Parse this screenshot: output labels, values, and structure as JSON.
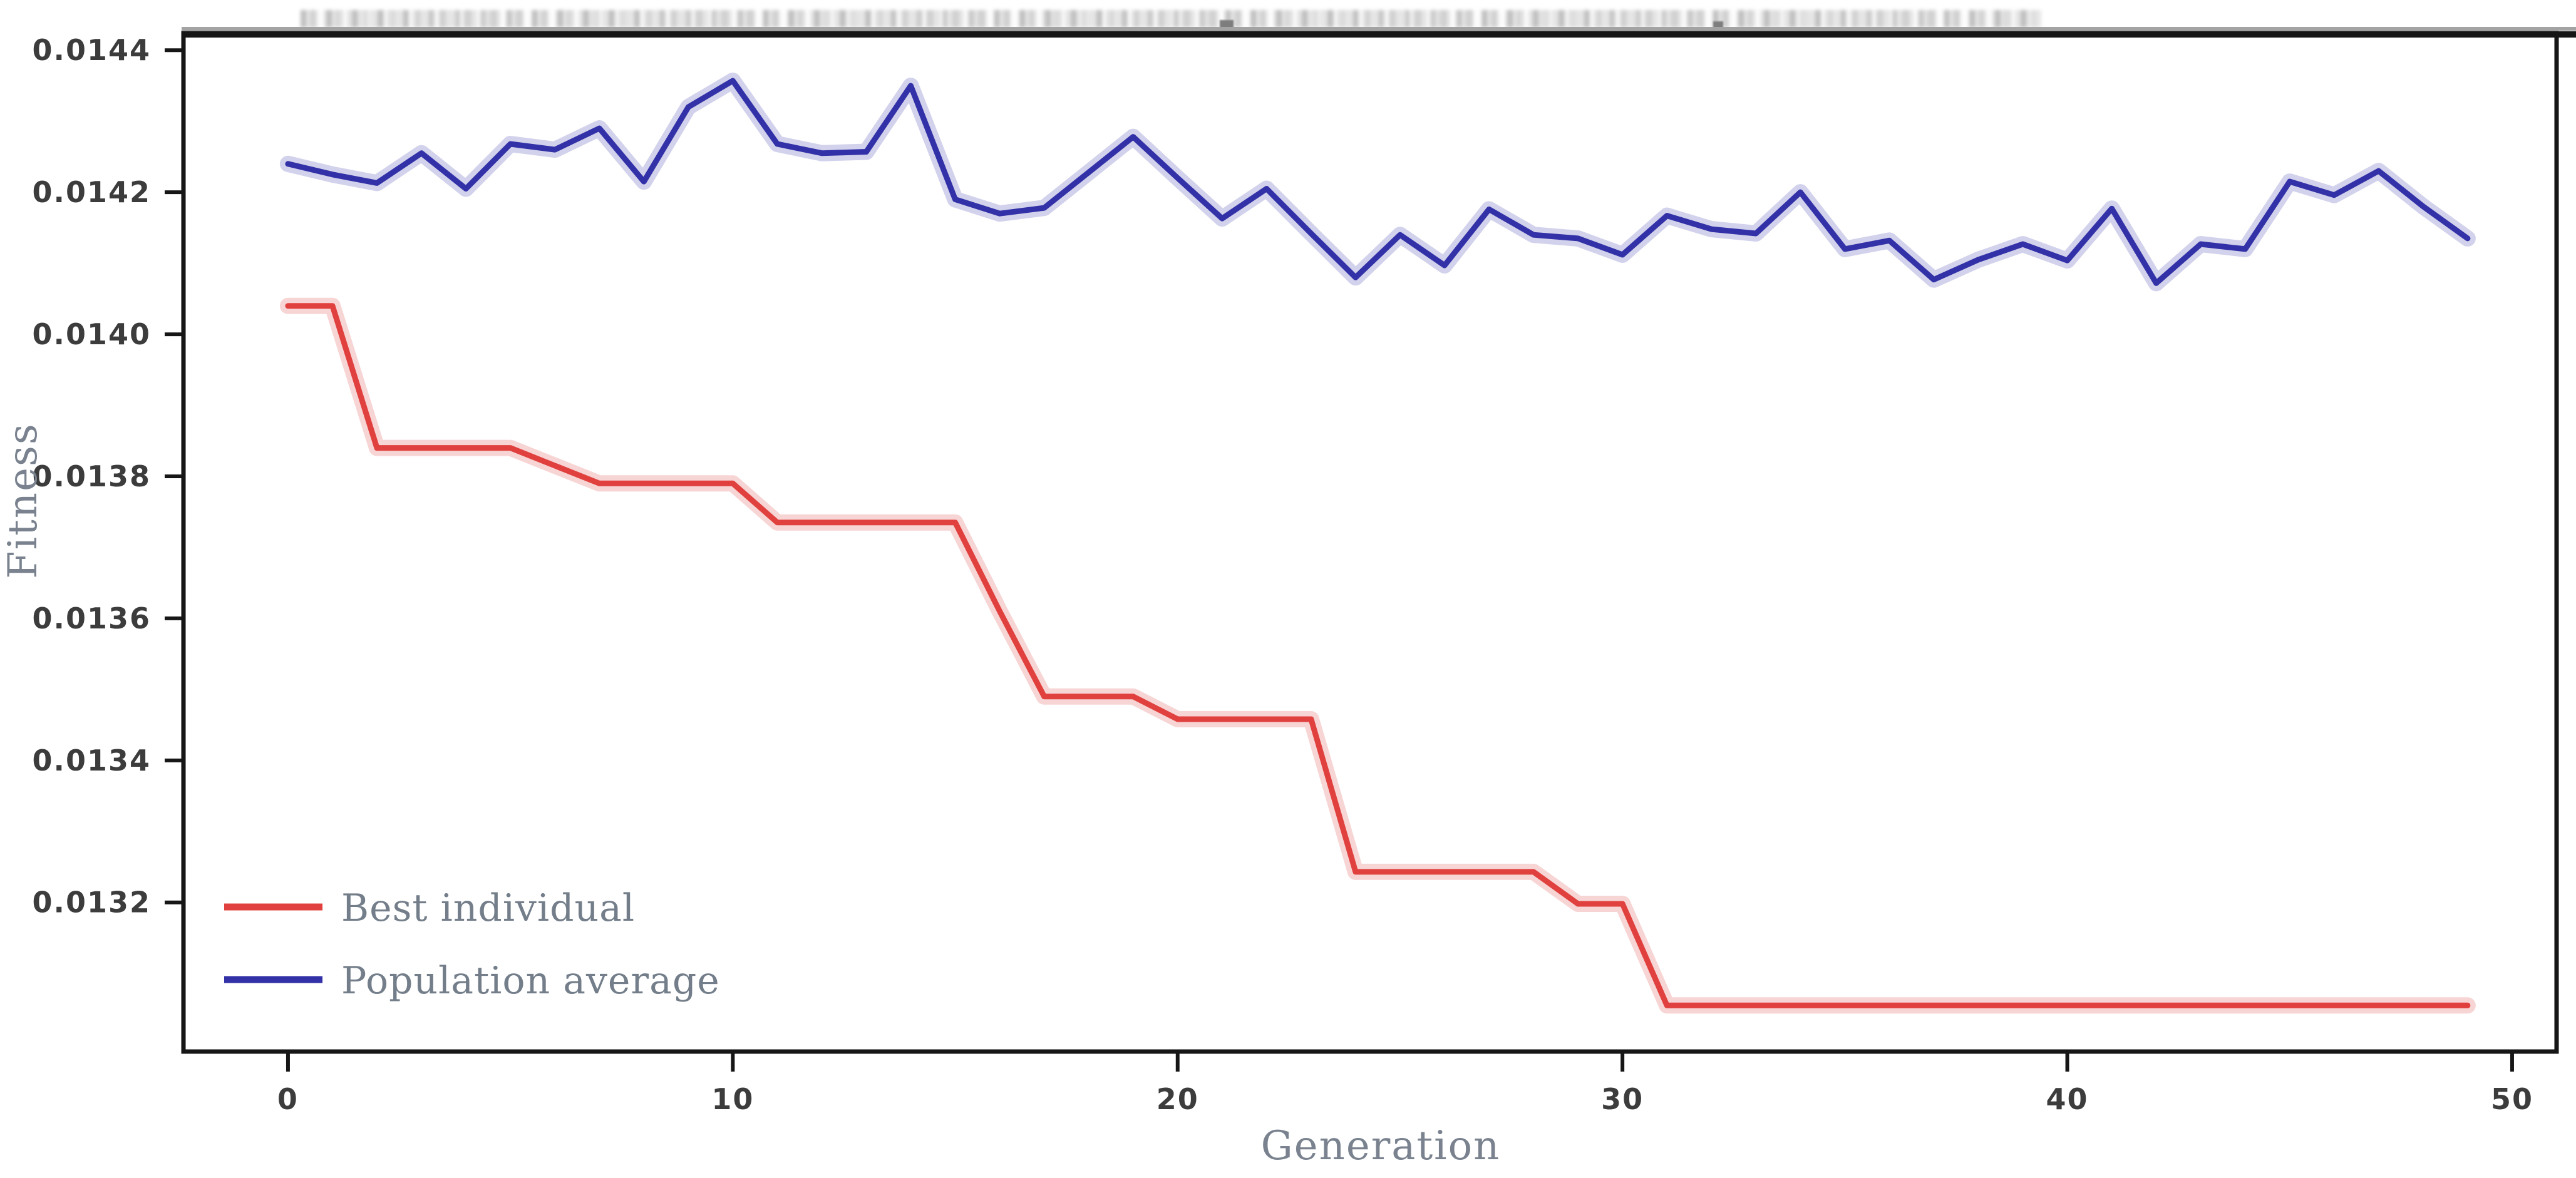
{
  "colors": {
    "background": "#ffffff",
    "spine": "#161616",
    "spine_top_shadow": "#a3a3a3",
    "tick_text": "#3c3c3c",
    "label_text": "#79828e",
    "best_individual": "#e0413e",
    "population_average": "#3231a8"
  },
  "chart_data": {
    "type": "line",
    "title": "",
    "xlabel": "Generation",
    "ylabel": "Fitness",
    "grid": false,
    "legend_position": "lower left",
    "xlim": [
      -2.35,
      51.0
    ],
    "ylim": [
      0.01299,
      0.014424
    ],
    "xticks": [
      0,
      10,
      20,
      30,
      40,
      50
    ],
    "xtick_labels": [
      "0",
      "10",
      "20",
      "30",
      "40",
      "50"
    ],
    "yticks": [
      0.0132,
      0.0134,
      0.0136,
      0.0138,
      0.014,
      0.0142,
      0.0144
    ],
    "ytick_labels": [
      "0.0132",
      "0.0134",
      "0.0136",
      "0.0138",
      "0.0140",
      "0.0142",
      "0.0144"
    ],
    "x": [
      0,
      1,
      2,
      3,
      4,
      5,
      6,
      7,
      8,
      9,
      10,
      11,
      12,
      13,
      14,
      15,
      16,
      17,
      18,
      19,
      20,
      21,
      22,
      23,
      24,
      25,
      26,
      27,
      28,
      29,
      30,
      31,
      32,
      33,
      34,
      35,
      36,
      37,
      38,
      39,
      40,
      41,
      42,
      43,
      44,
      45,
      46,
      47,
      48,
      49
    ],
    "series": [
      {
        "name": "Best individual",
        "color": "#e0413e",
        "values": [
          0.01404,
          0.01404,
          0.01384,
          0.01384,
          0.01384,
          0.01384,
          0.013815,
          0.01379,
          0.01379,
          0.01379,
          0.01379,
          0.013735,
          0.013735,
          0.013735,
          0.013735,
          0.013735,
          0.01361,
          0.01349,
          0.01349,
          0.01349,
          0.013458,
          0.013458,
          0.013458,
          0.013458,
          0.013243,
          0.013243,
          0.013243,
          0.013243,
          0.013243,
          0.013198,
          0.013198,
          0.013055,
          0.013055,
          0.013055,
          0.013055,
          0.013055,
          0.013055,
          0.013055,
          0.013055,
          0.013055,
          0.013055,
          0.013055,
          0.013055,
          0.013055,
          0.013055,
          0.013055,
          0.013055,
          0.013055,
          0.013055,
          0.013055
        ]
      },
      {
        "name": "Population average",
        "color": "#3231a8",
        "values": [
          0.01424,
          0.014225,
          0.014213,
          0.014255,
          0.014205,
          0.014268,
          0.01426,
          0.01429,
          0.014215,
          0.01432,
          0.014357,
          0.014268,
          0.014255,
          0.014257,
          0.01435,
          0.01419,
          0.01417,
          0.014178,
          0.014228,
          0.014278,
          0.01422,
          0.014163,
          0.014205,
          0.014142,
          0.01408,
          0.01414,
          0.014097,
          0.014176,
          0.01414,
          0.014135,
          0.014112,
          0.014167,
          0.014148,
          0.014142,
          0.0142,
          0.01412,
          0.014132,
          0.014077,
          0.014105,
          0.014127,
          0.014104,
          0.014177,
          0.014072,
          0.014127,
          0.01412,
          0.014215,
          0.014196,
          0.01423,
          0.01418,
          0.014135
        ]
      }
    ]
  }
}
